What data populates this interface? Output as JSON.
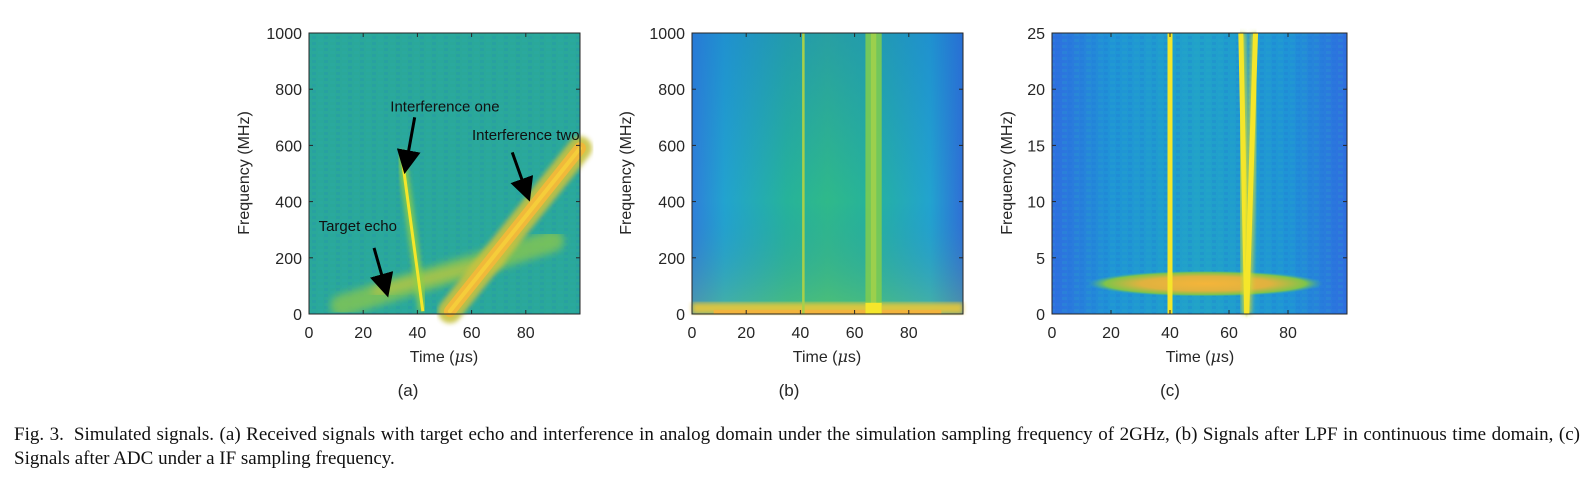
{
  "chart_data": [
    {
      "type": "heatmap",
      "panel_label": "(a)",
      "title": "",
      "xlabel": "Time (",
      "xlabel_mu": "μ",
      "xlabel_tail": "s)",
      "ylabel": "Frequency (MHz)",
      "xlim": [
        0,
        100
      ],
      "ylim": [
        0,
        1000
      ],
      "xticks": [
        "0",
        "20",
        "40",
        "60",
        "80"
      ],
      "xtick_values": [
        0,
        20,
        40,
        60,
        80
      ],
      "yticks": [
        "0",
        "200",
        "400",
        "600",
        "800",
        "1000"
      ],
      "ytick_values": [
        0,
        200,
        400,
        600,
        800,
        1000
      ],
      "background_color": "#2aa89a",
      "features": [
        {
          "name": "target-echo",
          "from": [
            12,
            30
          ],
          "to": [
            90,
            260
          ],
          "intensity": "medium",
          "width": 22
        },
        {
          "name": "interference-one",
          "from": [
            34,
            580
          ],
          "to": [
            42,
            10
          ],
          "intensity": "high",
          "width": 5
        },
        {
          "name": "interference-two",
          "from": [
            52,
            10
          ],
          "to": [
            100,
            590
          ],
          "intensity": "high",
          "width": 24
        }
      ],
      "annotations": [
        {
          "text": "Interference one",
          "x": 30,
          "y": 720,
          "arrow_to": [
            36,
            540
          ],
          "arrow_from": [
            39,
            700
          ]
        },
        {
          "text": "Interference two",
          "x": 80,
          "y": 620,
          "arrow_to": [
            80,
            440
          ],
          "arrow_from": [
            75,
            575
          ]
        },
        {
          "text": "Target echo",
          "x": 18,
          "y": 295,
          "arrow_to": [
            28,
            100
          ],
          "arrow_from": [
            24,
            235
          ]
        }
      ]
    },
    {
      "type": "heatmap",
      "panel_label": "(b)",
      "title": "",
      "xlabel": "Time (",
      "xlabel_mu": "μ",
      "xlabel_tail": "s)",
      "ylabel": "Frequency (MHz)",
      "xlim": [
        0,
        100
      ],
      "ylim": [
        0,
        1000
      ],
      "xticks": [
        "0",
        "20",
        "40",
        "60",
        "80"
      ],
      "xtick_values": [
        0,
        20,
        40,
        60,
        80
      ],
      "yticks": [
        "0",
        "200",
        "400",
        "600",
        "800",
        "1000"
      ],
      "ytick_values": [
        0,
        200,
        400,
        600,
        800,
        1000
      ],
      "features": [
        {
          "name": "low-frequency-band",
          "from": [
            0,
            0
          ],
          "to": [
            100,
            40
          ],
          "intensity": "high"
        },
        {
          "name": "interference-one-line",
          "from": [
            41,
            0
          ],
          "to": [
            41,
            1000
          ],
          "intensity": "medium"
        },
        {
          "name": "interference-two-band",
          "from": [
            64,
            0
          ],
          "to": [
            70,
            1000
          ],
          "intensity": "medium"
        }
      ]
    },
    {
      "type": "heatmap",
      "panel_label": "(c)",
      "title": "",
      "xlabel": "Time (",
      "xlabel_mu": "μ",
      "xlabel_tail": "s)",
      "ylabel": "Frequency (MHz)",
      "xlim": [
        0,
        100
      ],
      "ylim": [
        0,
        25
      ],
      "xticks": [
        "0",
        "20",
        "40",
        "60",
        "80"
      ],
      "xtick_values": [
        0,
        20,
        40,
        60,
        80
      ],
      "yticks": [
        "0",
        "5",
        "10",
        "15",
        "20",
        "25"
      ],
      "ytick_values": [
        0,
        5,
        10,
        15,
        20,
        25
      ],
      "features": [
        {
          "name": "target-echo-ellipse",
          "from": [
            12,
            2.7
          ],
          "to": [
            92,
            2.7
          ],
          "intensity": "medium"
        },
        {
          "name": "interference-one-line",
          "from": [
            40,
            0
          ],
          "to": [
            40,
            25
          ],
          "intensity": "high"
        },
        {
          "name": "interference-two-left",
          "from": [
            64,
            25
          ],
          "to": [
            66,
            0
          ],
          "intensity": "high"
        },
        {
          "name": "interference-two-right",
          "from": [
            69,
            25
          ],
          "to": [
            66,
            0
          ],
          "intensity": "high"
        }
      ]
    }
  ],
  "caption": {
    "label": "Fig. 3.",
    "text": "Simulated signals. (a) Received signals with target echo and interference in analog domain under the simulation sampling frequency of 2GHz, (b) Signals after LPF in continuous time domain, (c) Signals after ADC under a IF sampling frequency."
  },
  "colors": {
    "parula_bg": "#2aa89a",
    "parula_yellow": "#f5e62a",
    "parula_orange": "#f0b93a",
    "parula_blue": "#3070d8"
  }
}
